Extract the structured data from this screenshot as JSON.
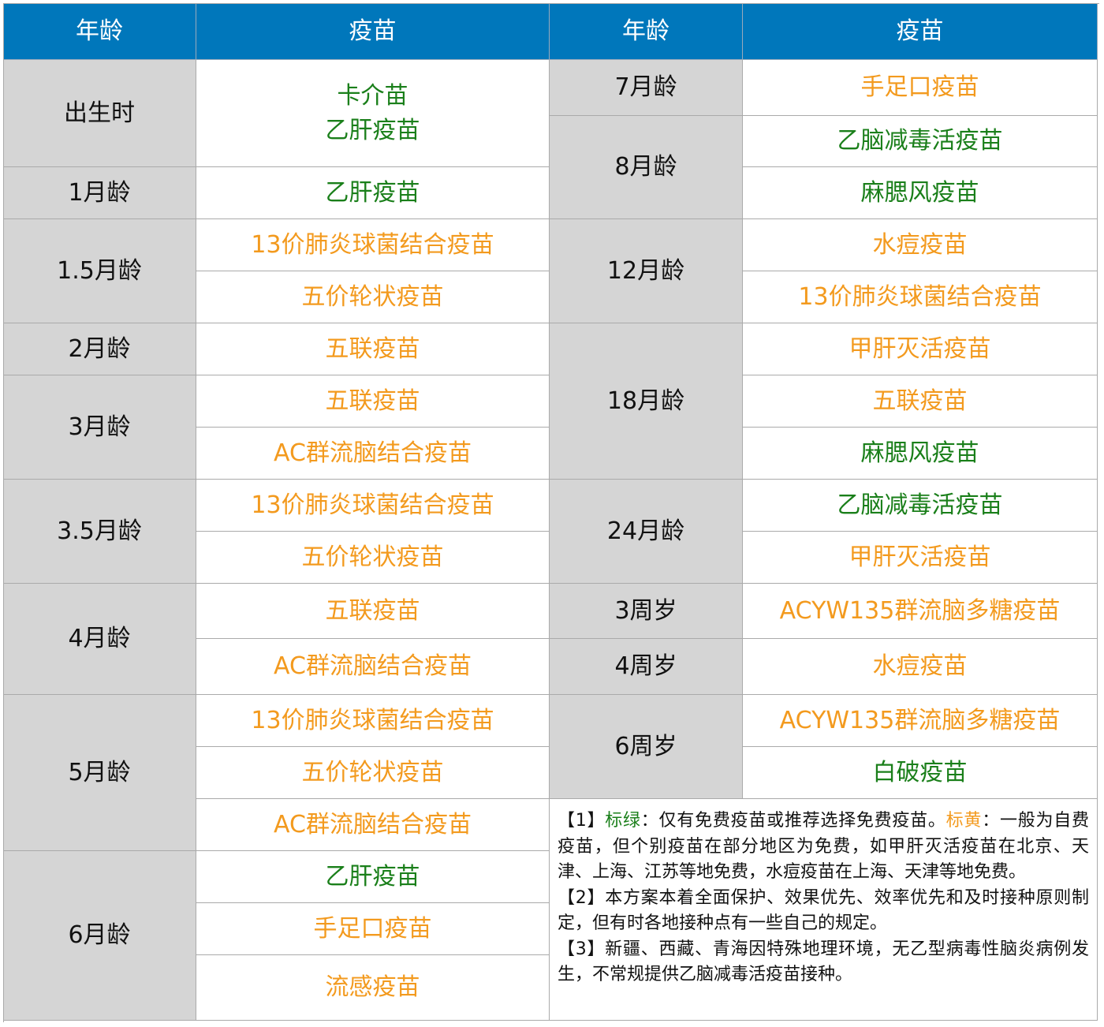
{
  "colors": {
    "header": "#0077bb",
    "age_bg": "#d5d5d5",
    "green": "#1a7f1a",
    "orange": "#f39a1e"
  },
  "headers": [
    "年龄",
    "疫苗",
    "年龄",
    "疫苗"
  ],
  "left": [
    {
      "age": "出生时",
      "vaccines": [
        {
          "name": "卡介苗\n乙肝疫苗",
          "color": "green"
        }
      ]
    },
    {
      "age": "1月龄",
      "vaccines": [
        {
          "name": "乙肝疫苗",
          "color": "green"
        }
      ]
    },
    {
      "age": "1.5月龄",
      "vaccines": [
        {
          "name": "13价肺炎球菌结合疫苗",
          "color": "orange"
        },
        {
          "name": "五价轮状疫苗",
          "color": "orange"
        }
      ]
    },
    {
      "age": "2月龄",
      "vaccines": [
        {
          "name": "五联疫苗",
          "color": "orange"
        }
      ]
    },
    {
      "age": "3月龄",
      "vaccines": [
        {
          "name": "五联疫苗",
          "color": "orange"
        },
        {
          "name": "AC群流脑结合疫苗",
          "color": "orange"
        }
      ]
    },
    {
      "age": "3.5月龄",
      "vaccines": [
        {
          "name": "13价肺炎球菌结合疫苗",
          "color": "orange"
        },
        {
          "name": "五价轮状疫苗",
          "color": "orange"
        }
      ]
    },
    {
      "age": "4月龄",
      "vaccines": [
        {
          "name": "五联疫苗",
          "color": "orange"
        },
        {
          "name": "AC群流脑结合疫苗",
          "color": "orange"
        }
      ]
    },
    {
      "age": "5月龄",
      "vaccines": [
        {
          "name": "13价肺炎球菌结合疫苗",
          "color": "orange"
        },
        {
          "name": "五价轮状疫苗",
          "color": "orange"
        },
        {
          "name": "AC群流脑结合疫苗",
          "color": "orange"
        }
      ]
    },
    {
      "age": "6月龄",
      "vaccines": [
        {
          "name": "乙肝疫苗",
          "color": "green"
        },
        {
          "name": "手足口疫苗",
          "color": "orange"
        },
        {
          "name": "流感疫苗",
          "color": "orange"
        }
      ]
    }
  ],
  "right": [
    {
      "age": "7月龄",
      "vaccines": [
        {
          "name": "手足口疫苗",
          "color": "orange"
        }
      ]
    },
    {
      "age": "8月龄",
      "vaccines": [
        {
          "name": "乙脑减毒活疫苗",
          "color": "green"
        },
        {
          "name": "麻腮风疫苗",
          "color": "green"
        }
      ]
    },
    {
      "age": "12月龄",
      "vaccines": [
        {
          "name": "水痘疫苗",
          "color": "orange"
        },
        {
          "name": "13价肺炎球菌结合疫苗",
          "color": "orange"
        }
      ]
    },
    {
      "age": "18月龄",
      "vaccines": [
        {
          "name": "甲肝灭活疫苗",
          "color": "orange"
        },
        {
          "name": "五联疫苗",
          "color": "orange"
        },
        {
          "name": "麻腮风疫苗",
          "color": "green"
        }
      ]
    },
    {
      "age": "24月龄",
      "vaccines": [
        {
          "name": "乙脑减毒活疫苗",
          "color": "green"
        },
        {
          "name": "甲肝灭活疫苗",
          "color": "orange"
        }
      ]
    },
    {
      "age": "3周岁",
      "vaccines": [
        {
          "name": "ACYW135群流脑多糖疫苗",
          "color": "orange"
        }
      ]
    },
    {
      "age": "4周岁",
      "vaccines": [
        {
          "name": "水痘疫苗",
          "color": "orange"
        }
      ]
    },
    {
      "age": "6周岁",
      "vaccines": [
        {
          "name": "ACYW135群流脑多糖疫苗",
          "color": "orange"
        },
        {
          "name": "白破疫苗",
          "color": "green"
        }
      ]
    }
  ],
  "notes": {
    "n1_prefix": "【1】",
    "green_label": "标绿",
    "green_text": "：仅有免费疫苗或推荐选择免费疫苗。",
    "orange_label": "标黄",
    "orange_text": "：一般为自费疫苗，但个别疫苗在部分地区为免费，如甲肝灭活疫苗在北京、天津、上海、江苏等地免费，水痘疫苗在上海、天津等地免费。",
    "n2": "【2】本方案本着全面保护、效果优先、效率优先和及时接种原则制定，但有时各地接种点有一些自己的规定。",
    "n3": "【3】新疆、西藏、青海因特殊地理环境，无乙型病毒性脑炎病例发生，不常规提供乙脑减毒活疫苗接种。"
  }
}
